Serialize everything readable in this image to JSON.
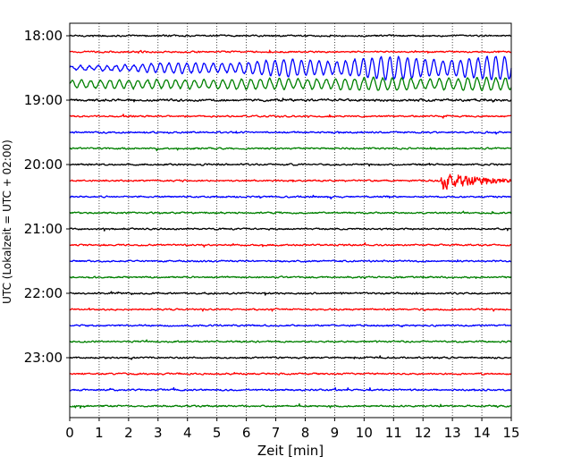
{
  "chart_data": {
    "type": "line",
    "chart_kind": "helicorder",
    "title": "",
    "xlabel": "Zeit  [min]",
    "ylabel": "UTC (Lokalzeit = UTC + 02:00)",
    "xlim": [
      0,
      15
    ],
    "x_ticks": [
      0,
      1,
      2,
      3,
      4,
      5,
      6,
      7,
      8,
      9,
      10,
      11,
      12,
      13,
      14,
      15
    ],
    "x_tick_labels": [
      "0",
      "1",
      "2",
      "3",
      "4",
      "5",
      "6",
      "7",
      "8",
      "9",
      "10",
      "11",
      "12",
      "13",
      "14",
      "15"
    ],
    "y_tick_labels": [
      "18:00",
      "19:00",
      "20:00",
      "21:00",
      "22:00",
      "23:00"
    ],
    "y_tick_trace_index": [
      0,
      4,
      8,
      12,
      16,
      20
    ],
    "trace_minutes": 15,
    "trace_count": 24,
    "start_time": "18:00",
    "grid": "vertical dotted lines at each minute",
    "color_cycle": [
      "#000000",
      "#ff0000",
      "#0000ff",
      "#008000"
    ],
    "series": [
      {
        "start": "18:00",
        "noise": 1.0,
        "events": []
      },
      {
        "start": "18:15",
        "noise": 1.0,
        "events": []
      },
      {
        "start": "18:30",
        "noise": 1.2,
        "events": [
          {
            "type": "oscillation",
            "t_start": 0.0,
            "t_end": 15.0,
            "amplitude": [
              2,
              13
            ],
            "period_min": 0.3
          }
        ]
      },
      {
        "start": "18:45",
        "noise": 1.2,
        "events": [
          {
            "type": "oscillation",
            "t_start": 0.0,
            "t_end": 15.0,
            "amplitude": [
              4,
              7
            ],
            "period_min": 0.32
          }
        ]
      },
      {
        "start": "19:00",
        "noise": 1.4,
        "events": []
      },
      {
        "start": "19:15",
        "noise": 1.0,
        "events": []
      },
      {
        "start": "19:30",
        "noise": 1.0,
        "events": []
      },
      {
        "start": "19:45",
        "noise": 1.0,
        "events": []
      },
      {
        "start": "20:00",
        "noise": 1.0,
        "events": []
      },
      {
        "start": "20:15",
        "noise": 1.0,
        "events": [
          {
            "type": "quake",
            "t_start": 12.6,
            "t_end": 15.0,
            "amplitude": 11
          }
        ]
      },
      {
        "start": "20:30",
        "noise": 1.0,
        "events": []
      },
      {
        "start": "20:45",
        "noise": 1.0,
        "events": []
      },
      {
        "start": "21:00",
        "noise": 1.0,
        "events": []
      },
      {
        "start": "21:15",
        "noise": 1.0,
        "events": []
      },
      {
        "start": "21:30",
        "noise": 1.0,
        "events": []
      },
      {
        "start": "21:45",
        "noise": 1.0,
        "events": []
      },
      {
        "start": "22:00",
        "noise": 1.0,
        "events": []
      },
      {
        "start": "22:15",
        "noise": 1.0,
        "events": []
      },
      {
        "start": "22:30",
        "noise": 1.0,
        "events": []
      },
      {
        "start": "22:45",
        "noise": 1.0,
        "events": []
      },
      {
        "start": "23:00",
        "noise": 1.0,
        "events": []
      },
      {
        "start": "23:15",
        "noise": 1.0,
        "events": []
      },
      {
        "start": "23:30",
        "noise": 1.0,
        "events": []
      },
      {
        "start": "23:45",
        "noise": 1.0,
        "events": []
      }
    ]
  }
}
